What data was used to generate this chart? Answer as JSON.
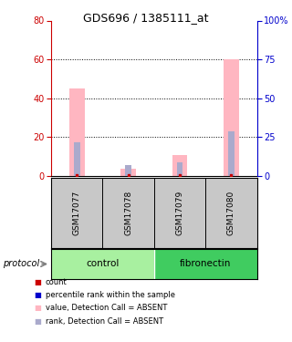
{
  "title": "GDS696 / 1385111_at",
  "samples": [
    "GSM17077",
    "GSM17078",
    "GSM17079",
    "GSM17080"
  ],
  "pink_values": [
    45,
    4,
    11,
    60
  ],
  "blue_values": [
    22,
    7,
    9,
    29
  ],
  "pink_color": "#FFB6C1",
  "blue_color": "#AAAACC",
  "red_color": "#CC0000",
  "blue_dot_color": "#0000CC",
  "left_ylim": [
    0,
    80
  ],
  "right_ylim": [
    0,
    100
  ],
  "left_yticks": [
    0,
    20,
    40,
    60,
    80
  ],
  "right_yticks": [
    0,
    25,
    50,
    75,
    100
  ],
  "right_yticklabels": [
    "0",
    "25",
    "50",
    "75",
    "100%"
  ],
  "left_ycolor": "#CC0000",
  "right_ycolor": "#0000CC",
  "sample_bg": "#C8C8C8",
  "control_color": "#A8F0A0",
  "fibronectin_color": "#40CC60",
  "legend_items": [
    {
      "label": "count",
      "color": "#CC0000"
    },
    {
      "label": "percentile rank within the sample",
      "color": "#0000CC"
    },
    {
      "label": "value, Detection Call = ABSENT",
      "color": "#FFB6C1"
    },
    {
      "label": "rank, Detection Call = ABSENT",
      "color": "#AAAACC"
    }
  ],
  "grid_lines": [
    20,
    40,
    60
  ],
  "bar_width": 0.3,
  "blue_bar_width": 0.12
}
